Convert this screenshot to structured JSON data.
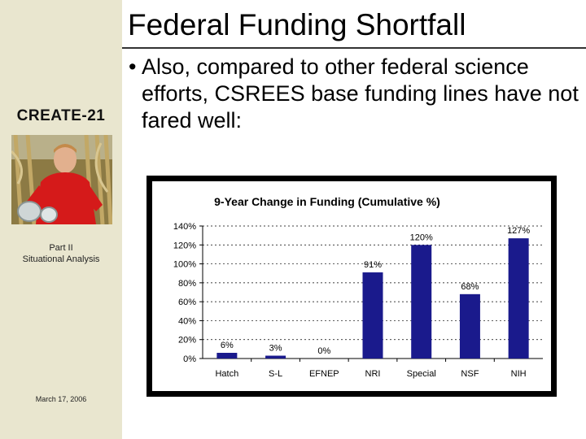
{
  "slide": {
    "title": "Federal Funding Shortfall",
    "bullet": "Also, compared to other federal science efforts, CSREES base funding lines have not fared well:",
    "bullet_glyph": "•"
  },
  "sidebar": {
    "brand": "CREATE-21",
    "section_line1": "Part II",
    "section_line2": "Situational Analysis",
    "date": "March 17, 2006",
    "photo_icon": "farmer-in-cornfield-photo"
  },
  "colors": {
    "sidebar_bg": "#e9e6cf",
    "bar_fill": "#1a1a8c",
    "chart_frame": "#000000"
  },
  "chart_data": {
    "type": "bar",
    "title": "9-Year Change in Funding (Cumulative %)",
    "categories": [
      "Hatch",
      "S-L",
      "EFNEP",
      "NRI",
      "Special",
      "NSF",
      "NIH"
    ],
    "values": [
      6,
      3,
      0,
      91,
      120,
      68,
      127
    ],
    "data_labels": [
      "6%",
      "3%",
      "0%",
      "91%",
      "120%",
      "68%",
      "127%"
    ],
    "y_ticks": [
      "0%",
      "20%",
      "40%",
      "60%",
      "80%",
      "100%",
      "120%",
      "140%"
    ],
    "ylim": [
      0,
      140
    ],
    "grid": "horizontal dashed",
    "legend": "none"
  }
}
